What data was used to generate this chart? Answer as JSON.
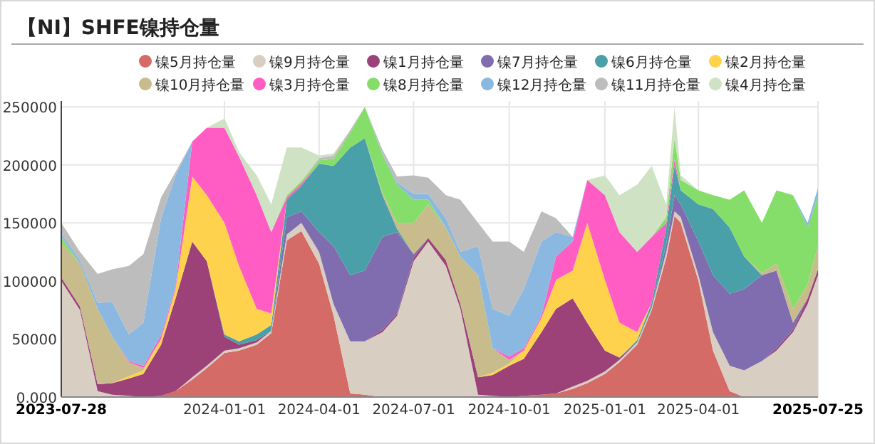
{
  "chart_data": {
    "type": "area",
    "stacked": true,
    "title": "【NI】SHFE镍持仓量",
    "legend": "top",
    "grid": true,
    "x": [
      "2023-07-28",
      "2023-08-15",
      "2023-09-01",
      "2023-09-15",
      "2023-10-01",
      "2023-10-15",
      "2023-11-01",
      "2023-11-15",
      "2023-12-01",
      "2023-12-15",
      "2024-01-01",
      "2024-01-15",
      "2024-02-01",
      "2024-02-15",
      "2024-03-01",
      "2024-03-15",
      "2024-04-01",
      "2024-04-15",
      "2024-05-01",
      "2024-05-15",
      "2024-06-01",
      "2024-06-15",
      "2024-07-01",
      "2024-07-15",
      "2024-08-01",
      "2024-08-15",
      "2024-09-01",
      "2024-09-15",
      "2024-10-01",
      "2024-10-15",
      "2024-11-01",
      "2024-11-15",
      "2024-12-01",
      "2024-12-15",
      "2025-01-01",
      "2025-01-15",
      "2025-02-01",
      "2025-02-15",
      "2025-03-01",
      "2025-03-09",
      "2025-03-15",
      "2025-04-01",
      "2025-04-15",
      "2025-05-01",
      "2025-05-15",
      "2025-06-01",
      "2025-06-15",
      "2025-07-01",
      "2025-07-15",
      "2025-07-25"
    ],
    "xlim": [
      "2023-07-28",
      "2025-07-25"
    ],
    "xticks": [
      "2023-07-28",
      "2024-01-01",
      "2024-04-01",
      "2024-07-01",
      "2024-10-01",
      "2025-01-01",
      "2025-04-01",
      "2025-07-25"
    ],
    "ylim": [
      0,
      255000
    ],
    "yticks": [
      {
        "value": 0,
        "label": "0.000"
      },
      50000,
      100000,
      150000,
      200000,
      250000
    ],
    "series": [
      {
        "name": "镍5月持仓量",
        "color": "#d46b66",
        "values": [
          null,
          null,
          null,
          null,
          null,
          0,
          1000,
          5000,
          15000,
          25000,
          38000,
          40000,
          45000,
          55000,
          135000,
          143000,
          115000,
          70000,
          3000,
          2000,
          0,
          null,
          null,
          null,
          null,
          null,
          null,
          null,
          0,
          1000,
          2000,
          3000,
          7000,
          12000,
          20000,
          30000,
          45000,
          75000,
          120000,
          156000,
          150000,
          100000,
          40000,
          5000,
          0,
          null,
          null,
          null,
          null,
          null
        ]
      },
      {
        "name": "镍9月持仓量",
        "color": "#d8cfc2",
        "values": [
          100000,
          75000,
          5000,
          2000,
          1000,
          0,
          null,
          0,
          2000,
          2000,
          2000,
          2000,
          2000,
          2000,
          5000,
          7000,
          10000,
          10000,
          45000,
          46000,
          56000,
          70000,
          117000,
          134000,
          113000,
          76000,
          2000,
          1000,
          0,
          null,
          null,
          0,
          2000,
          2000,
          2000,
          2000,
          2000,
          2000,
          5000,
          4000,
          5000,
          5000,
          16000,
          22000,
          23000,
          31000,
          40000,
          56000,
          80000,
          105000
        ]
      },
      {
        "name": "镍1月持仓量",
        "color": "#9c4279",
        "values": [
          3000,
          3000,
          6000,
          10000,
          15000,
          20000,
          44000,
          80000,
          117000,
          90000,
          12000,
          3000,
          2000,
          0,
          null,
          null,
          null,
          null,
          null,
          0,
          2000,
          2000,
          3000,
          3000,
          5000,
          4000,
          15000,
          18000,
          27000,
          32000,
          54000,
          73000,
          76000,
          50000,
          18000,
          2000,
          0,
          null,
          null,
          null,
          null,
          null,
          null,
          null,
          null,
          0,
          2000,
          2000,
          5000,
          5000
        ]
      },
      {
        "name": "镍7月持仓量",
        "color": "#7f6db0",
        "values": [
          null,
          null,
          null,
          null,
          null,
          null,
          null,
          null,
          null,
          null,
          null,
          null,
          null,
          0,
          15000,
          10000,
          17000,
          50000,
          57000,
          61000,
          80000,
          70000,
          3000,
          0,
          null,
          null,
          null,
          null,
          null,
          null,
          null,
          null,
          null,
          null,
          null,
          null,
          null,
          0,
          7000,
          14000,
          11000,
          29000,
          49000,
          62000,
          70000,
          74000,
          67000,
          6000,
          0,
          null
        ]
      },
      {
        "name": "镍6月持仓量",
        "color": "#4aa0a8",
        "values": [
          null,
          null,
          null,
          null,
          null,
          null,
          null,
          null,
          null,
          0,
          2000,
          3000,
          5000,
          5000,
          15000,
          22000,
          59000,
          69000,
          110000,
          114000,
          36000,
          3000,
          0,
          null,
          null,
          null,
          null,
          null,
          null,
          null,
          null,
          null,
          null,
          null,
          null,
          0,
          2000,
          4000,
          14000,
          25000,
          12000,
          32000,
          57000,
          57000,
          28000,
          0,
          null,
          null,
          null,
          null
        ]
      },
      {
        "name": "镍2月持仓量",
        "color": "#ffd24d",
        "values": [
          null,
          null,
          null,
          0,
          2000,
          3000,
          5000,
          8000,
          56000,
          57000,
          96000,
          65000,
          22000,
          10000,
          0,
          null,
          null,
          null,
          null,
          null,
          null,
          null,
          null,
          null,
          null,
          null,
          0,
          2000,
          2000,
          7000,
          12000,
          25000,
          24000,
          86000,
          61000,
          30000,
          7000,
          0,
          null,
          null,
          null,
          null,
          null,
          null,
          null,
          null,
          null,
          null,
          null,
          null
        ]
      },
      {
        "name": "镍10月持仓量",
        "color": "#c8bc8c",
        "values": [
          30000,
          37000,
          65000,
          40000,
          12000,
          2000,
          0,
          null,
          null,
          null,
          null,
          null,
          null,
          null,
          null,
          null,
          null,
          null,
          null,
          0,
          2000,
          5000,
          27000,
          29000,
          28000,
          41000,
          88000,
          21000,
          3000,
          0,
          null,
          null,
          null,
          null,
          null,
          null,
          null,
          null,
          null,
          null,
          null,
          null,
          null,
          null,
          0,
          2000,
          6000,
          12000,
          12000,
          20000
        ]
      },
      {
        "name": "镍3月持仓量",
        "color": "#ff5cc4",
        "values": [
          null,
          null,
          null,
          0,
          1000,
          2000,
          3000,
          2000,
          30000,
          58000,
          82000,
          94000,
          98000,
          70000,
          2000,
          2000,
          0,
          null,
          null,
          null,
          null,
          null,
          null,
          null,
          null,
          null,
          null,
          0,
          3000,
          2000,
          2000,
          20000,
          25000,
          37000,
          73000,
          78000,
          69000,
          57000,
          4000,
          6000,
          0,
          null,
          null,
          null,
          null,
          null,
          null,
          null,
          null,
          null
        ]
      },
      {
        "name": "镍8月持仓量",
        "color": "#86de6a",
        "values": [
          5000,
          0,
          null,
          null,
          null,
          null,
          null,
          null,
          null,
          null,
          null,
          null,
          null,
          0,
          2000,
          2000,
          3000,
          6000,
          13000,
          27000,
          33000,
          33000,
          20000,
          4000,
          0,
          null,
          null,
          null,
          null,
          null,
          null,
          null,
          null,
          null,
          null,
          null,
          null,
          0,
          5000,
          18000,
          9000,
          12000,
          12000,
          24000,
          57000,
          43000,
          63000,
          98000,
          49000,
          44000
        ]
      },
      {
        "name": "镍12月持仓量",
        "color": "#8ab8e0",
        "values": [
          3000,
          3000,
          5000,
          30000,
          23000,
          37000,
          101000,
          96000,
          0,
          null,
          null,
          null,
          null,
          null,
          null,
          null,
          null,
          null,
          null,
          0,
          1000,
          2000,
          5000,
          5000,
          8000,
          4000,
          25000,
          34000,
          35000,
          51000,
          64000,
          21000,
          4000,
          0,
          null,
          null,
          null,
          null,
          null,
          null,
          null,
          null,
          null,
          null,
          null,
          null,
          null,
          0,
          4000,
          6000
        ]
      },
      {
        "name": "镍11月持仓量",
        "color": "#bdbdbd",
        "values": [
          9000,
          7000,
          25000,
          28000,
          59000,
          59000,
          18000,
          3000,
          0,
          null,
          null,
          null,
          null,
          null,
          null,
          0,
          2000,
          3000,
          2000,
          0,
          3000,
          5000,
          16000,
          14000,
          20000,
          45000,
          20000,
          58000,
          64000,
          32000,
          26000,
          12000,
          0,
          null,
          null,
          null,
          null,
          null,
          null,
          null,
          null,
          null,
          null,
          null,
          null,
          null,
          null,
          null,
          null,
          null
        ]
      },
      {
        "name": "镍4月持仓量",
        "color": "#cfe2c3",
        "values": [
          null,
          null,
          null,
          null,
          null,
          null,
          null,
          null,
          null,
          0,
          8000,
          4000,
          17000,
          24000,
          41000,
          29000,
          2000,
          2000,
          0,
          null,
          null,
          null,
          null,
          null,
          null,
          null,
          null,
          null,
          null,
          null,
          null,
          null,
          null,
          0,
          17000,
          32000,
          58000,
          61000,
          11000,
          27000,
          4000,
          0,
          null,
          null,
          null,
          null,
          null,
          null,
          null,
          null
        ]
      }
    ]
  }
}
